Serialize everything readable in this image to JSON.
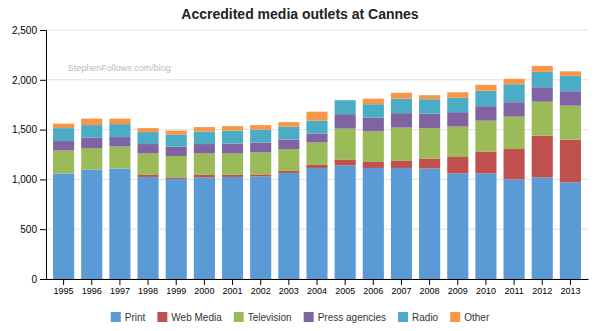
{
  "chart_data": {
    "type": "bar",
    "stacked": true,
    "title": "Accredited media outlets at Cannes",
    "annotations": [
      "StephenFollows.com/blog"
    ],
    "categories": [
      "1995",
      "1996",
      "1997",
      "1998",
      "1999",
      "2000",
      "2001",
      "2002",
      "2003",
      "2004",
      "2005",
      "2006",
      "2007",
      "2008",
      "2009",
      "2010",
      "2011",
      "2012",
      "2013"
    ],
    "series": [
      {
        "name": "Print",
        "color": "#5b9bd5",
        "values": [
          1060,
          1100,
          1110,
          1025,
          1005,
          1020,
          1025,
          1030,
          1065,
          1115,
          1140,
          1115,
          1115,
          1110,
          1060,
          1060,
          1000,
          1020,
          970
        ]
      },
      {
        "name": "Web Media",
        "color": "#c0504d",
        "values": [
          0,
          0,
          0,
          20,
          15,
          25,
          20,
          20,
          25,
          30,
          60,
          60,
          75,
          100,
          165,
          220,
          305,
          420,
          430
        ]
      },
      {
        "name": "Television",
        "color": "#9bbb59",
        "values": [
          230,
          215,
          220,
          215,
          215,
          215,
          215,
          220,
          215,
          225,
          310,
          310,
          330,
          305,
          305,
          310,
          325,
          340,
          340
        ]
      },
      {
        "name": "Press agencies",
        "color": "#8064a2",
        "values": [
          95,
          105,
          95,
          95,
          95,
          95,
          100,
          100,
          95,
          90,
          145,
          135,
          145,
          145,
          145,
          145,
          145,
          145,
          145
        ]
      },
      {
        "name": "Radio",
        "color": "#4bacc6",
        "values": [
          130,
          125,
          130,
          120,
          120,
          125,
          130,
          130,
          130,
          130,
          140,
          135,
          145,
          145,
          145,
          155,
          180,
          155,
          155
        ]
      },
      {
        "name": "Other",
        "color": "#f79646",
        "values": [
          45,
          65,
          55,
          40,
          40,
          45,
          45,
          45,
          45,
          90,
          0,
          55,
          60,
          40,
          55,
          60,
          55,
          60,
          45
        ]
      }
    ],
    "ylim": [
      0,
      2500
    ],
    "yticks": [
      0,
      500,
      {
        "value": 1000,
        "label": "1,000"
      },
      {
        "value": 1500,
        "label": "1,500"
      },
      {
        "value": 2000,
        "label": "2,000"
      },
      {
        "value": 2500,
        "label": "2,500"
      }
    ],
    "grid": true,
    "legend": "bottom"
  }
}
